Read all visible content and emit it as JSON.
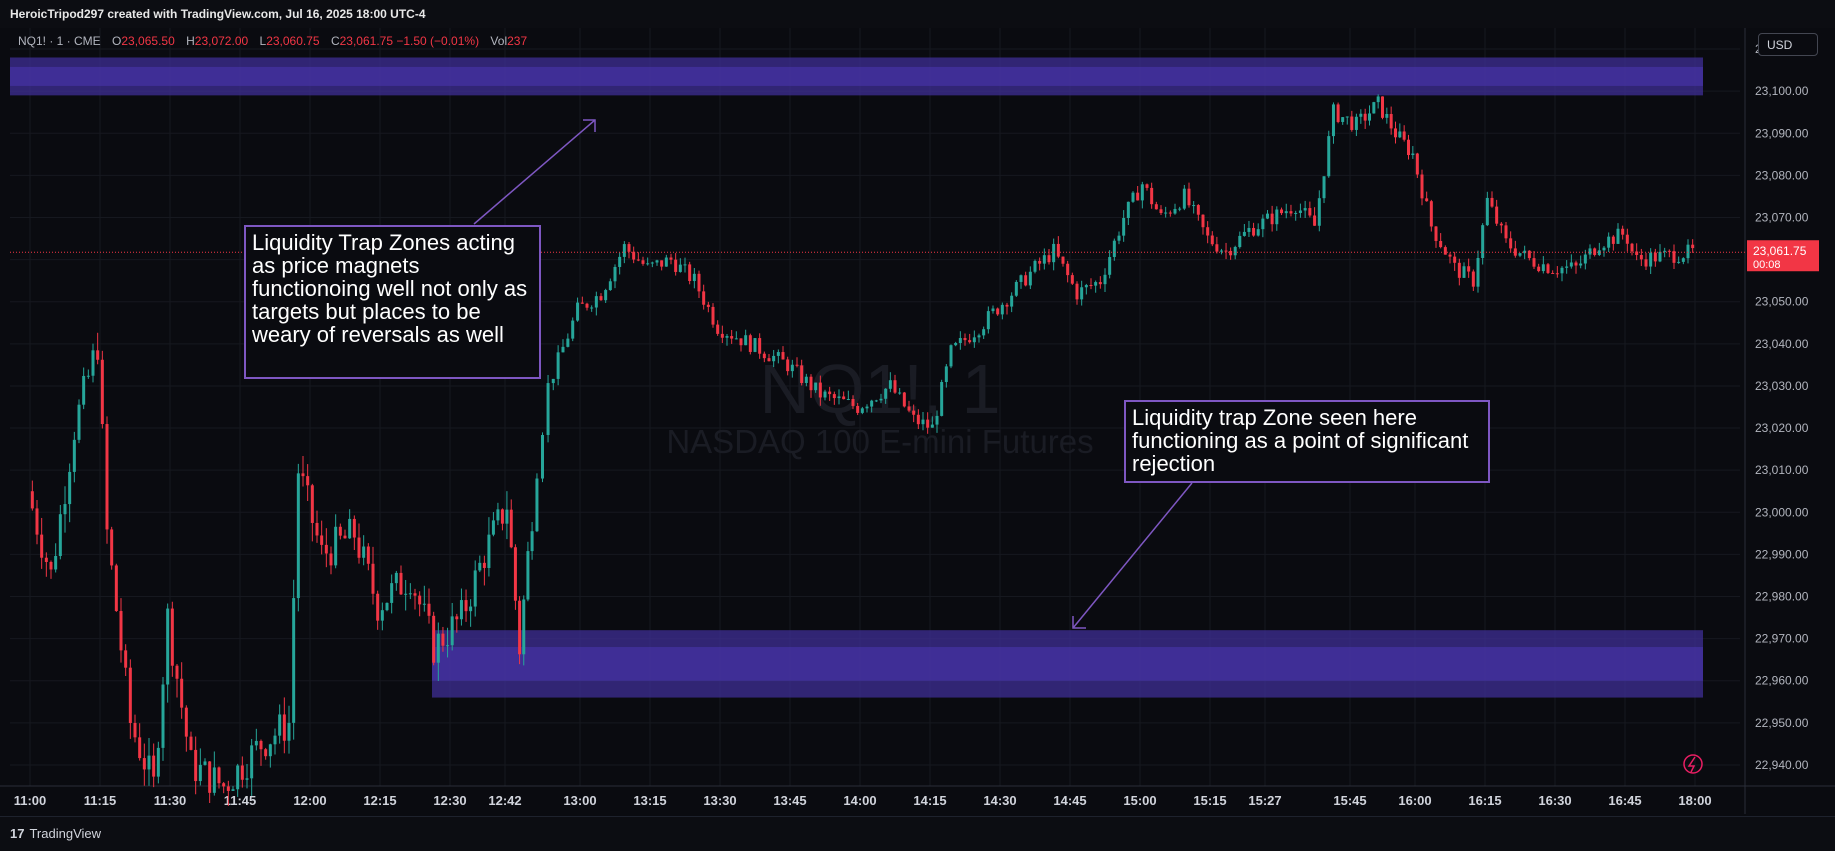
{
  "header": {
    "credit": "HeroicTripod297 created with TradingView.com, Jul 16, 2025 18:00 UTC-4"
  },
  "legend": {
    "symbol": "NQ1! · 1 · CME",
    "open_label": "O",
    "open": "23,065.50",
    "high_label": "H",
    "high": "23,072.00",
    "low_label": "L",
    "low": "23,060.75",
    "close_label": "C",
    "close": "23,061.75",
    "change": "−1.50 (−0.01%)",
    "vol_label": "Vol",
    "vol": "237"
  },
  "currency_button": "USD",
  "watermark": {
    "ticker": "NQ1!, 1",
    "name": "NASDAQ 100 E-mini Futures"
  },
  "price_tag": {
    "price": "23,061.75",
    "countdown": "00:08"
  },
  "annotations": {
    "top": "Liquidity Trap Zones acting as price magnets functionoing well not only as targets but places to be weary of reversals as well",
    "bottom": "Liquidity trap Zone seen here functioning as a point of significant rejection"
  },
  "footer": {
    "brand": "TradingView",
    "brand_mark": "17"
  },
  "colors": {
    "background": "#0a0b10",
    "up": "#26a69a",
    "down": "#f23645",
    "zone": "#3f2f95",
    "annotation": "#7e57c2",
    "price_tag": "#f23645"
  },
  "chart_data": {
    "type": "candlestick",
    "symbol": "NQ1!",
    "interval": "1",
    "exchange": "CME",
    "ylim": [
      22935,
      23115
    ],
    "y_ticks": [
      "22,940.00",
      "22,950.00",
      "22,960.00",
      "22,970.00",
      "22,980.00",
      "22,990.00",
      "23,000.00",
      "23,010.00",
      "23,020.00",
      "23,030.00",
      "23,040.00",
      "23,050.00",
      "23,060.00",
      "23,070.00",
      "23,080.00",
      "23,090.00",
      "23,100.00",
      "23,110.00"
    ],
    "x_ticks": [
      "11:00",
      "11:15",
      "11:30",
      "11:45",
      "12:00",
      "12:15",
      "12:30",
      "12:42",
      "13:00",
      "13:15",
      "13:30",
      "13:45",
      "14:00",
      "14:15",
      "14:30",
      "14:45",
      "15:00",
      "15:15",
      "15:27",
      "15:45",
      "16:00",
      "16:15",
      "16:30",
      "16:45",
      "18:00"
    ],
    "zones": [
      {
        "from": 23099,
        "to": 23108
      },
      {
        "from": 22956,
        "to": 22972
      }
    ],
    "last_price": 23061.75,
    "close_path": [
      {
        "t": "11:00",
        "v": 23005
      },
      {
        "t": "11:05",
        "v": 22985
      },
      {
        "t": "11:10",
        "v": 23020
      },
      {
        "t": "11:15",
        "v": 23040
      },
      {
        "t": "11:17",
        "v": 22995
      },
      {
        "t": "11:22",
        "v": 22950
      },
      {
        "t": "11:27",
        "v": 22935
      },
      {
        "t": "11:30",
        "v": 22975
      },
      {
        "t": "11:35",
        "v": 22940
      },
      {
        "t": "11:42",
        "v": 22935
      },
      {
        "t": "11:50",
        "v": 22945
      },
      {
        "t": "11:56",
        "v": 22950
      },
      {
        "t": "11:58",
        "v": 23010
      },
      {
        "t": "12:03",
        "v": 22990
      },
      {
        "t": "12:10",
        "v": 22995
      },
      {
        "t": "12:15",
        "v": 22978
      },
      {
        "t": "12:22",
        "v": 22985
      },
      {
        "t": "12:27",
        "v": 22968
      },
      {
        "t": "12:33",
        "v": 22975
      },
      {
        "t": "12:38",
        "v": 22990
      },
      {
        "t": "12:43",
        "v": 23002
      },
      {
        "t": "12:46",
        "v": 22968
      },
      {
        "t": "12:49",
        "v": 23000
      },
      {
        "t": "12:53",
        "v": 23030
      },
      {
        "t": "13:00",
        "v": 23048
      },
      {
        "t": "13:05",
        "v": 23052
      },
      {
        "t": "13:10",
        "v": 23063
      },
      {
        "t": "13:15",
        "v": 23058
      },
      {
        "t": "13:20",
        "v": 23060
      },
      {
        "t": "13:25",
        "v": 23055
      },
      {
        "t": "13:30",
        "v": 23044
      },
      {
        "t": "13:37",
        "v": 23040
      },
      {
        "t": "13:45",
        "v": 23035
      },
      {
        "t": "13:52",
        "v": 23028
      },
      {
        "t": "14:00",
        "v": 23025
      },
      {
        "t": "14:07",
        "v": 23030
      },
      {
        "t": "14:12",
        "v": 23022
      },
      {
        "t": "14:16",
        "v": 23020
      },
      {
        "t": "14:20",
        "v": 23038
      },
      {
        "t": "14:27",
        "v": 23045
      },
      {
        "t": "14:33",
        "v": 23052
      },
      {
        "t": "14:38",
        "v": 23058
      },
      {
        "t": "14:42",
        "v": 23062
      },
      {
        "t": "14:47",
        "v": 23052
      },
      {
        "t": "14:52",
        "v": 23055
      },
      {
        "t": "14:57",
        "v": 23070
      },
      {
        "t": "15:01",
        "v": 23078
      },
      {
        "t": "15:05",
        "v": 23070
      },
      {
        "t": "15:10",
        "v": 23075
      },
      {
        "t": "15:15",
        "v": 23065
      },
      {
        "t": "15:19",
        "v": 23062
      },
      {
        "t": "15:24",
        "v": 23067
      },
      {
        "t": "15:29",
        "v": 23070
      },
      {
        "t": "15:34",
        "v": 23073
      },
      {
        "t": "15:38",
        "v": 23068
      },
      {
        "t": "15:42",
        "v": 23095
      },
      {
        "t": "15:47",
        "v": 23092
      },
      {
        "t": "15:52",
        "v": 23097
      },
      {
        "t": "15:56",
        "v": 23090
      },
      {
        "t": "16:00",
        "v": 23085
      },
      {
        "t": "16:04",
        "v": 23068
      },
      {
        "t": "16:09",
        "v": 23058
      },
      {
        "t": "16:13",
        "v": 23055
      },
      {
        "t": "16:16",
        "v": 23074
      },
      {
        "t": "16:20",
        "v": 23064
      },
      {
        "t": "16:25",
        "v": 23060
      },
      {
        "t": "16:30",
        "v": 23058
      },
      {
        "t": "16:35",
        "v": 23058
      },
      {
        "t": "16:40",
        "v": 23064
      },
      {
        "t": "16:45",
        "v": 23066
      },
      {
        "t": "16:50",
        "v": 23065
      },
      {
        "t": "16:55",
        "v": 23062
      },
      {
        "t": "17:00",
        "v": 23060
      },
      {
        "t": "18:00",
        "v": 23061.75
      }
    ]
  }
}
